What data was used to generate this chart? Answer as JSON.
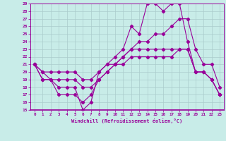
{
  "title": "",
  "xlabel": "Windchill (Refroidissement éolien,°C)",
  "bg_color": "#c8ece8",
  "grid_color": "#aacccc",
  "line_color": "#990099",
  "xlim": [
    -0.5,
    23.5
  ],
  "ylim": [
    15,
    29
  ],
  "xticks": [
    0,
    1,
    2,
    3,
    4,
    5,
    6,
    7,
    8,
    9,
    10,
    11,
    12,
    13,
    14,
    15,
    16,
    17,
    18,
    19,
    20,
    21,
    22,
    23
  ],
  "yticks": [
    15,
    16,
    17,
    18,
    19,
    20,
    21,
    22,
    23,
    24,
    25,
    26,
    27,
    28,
    29
  ],
  "line1_x": [
    0,
    1,
    2,
    3,
    4,
    5,
    6,
    7,
    8,
    9,
    10,
    11,
    12,
    13,
    14,
    15,
    16,
    17,
    18,
    19,
    20,
    21,
    22,
    23
  ],
  "line1_y": [
    21,
    19,
    19,
    18,
    18,
    18,
    15,
    16,
    20,
    21,
    22,
    23,
    26,
    25,
    29,
    29,
    28,
    29,
    29,
    24,
    20,
    20,
    19,
    17
  ],
  "line2_x": [
    0,
    1,
    2,
    3,
    4,
    5,
    6,
    7,
    8,
    9,
    10,
    11,
    12,
    13,
    14,
    15,
    16,
    17,
    18,
    19,
    20,
    21,
    22,
    23
  ],
  "line2_y": [
    21,
    19,
    19,
    17,
    17,
    17,
    16,
    17,
    19,
    20,
    21,
    22,
    23,
    23,
    23,
    23,
    23,
    23,
    23,
    23,
    20,
    20,
    19,
    17
  ],
  "line3_x": [
    0,
    1,
    2,
    3,
    4,
    5,
    6,
    7,
    8,
    9,
    10,
    11,
    12,
    13,
    14,
    15,
    16,
    17,
    18,
    19,
    20,
    21,
    22,
    23
  ],
  "line3_y": [
    21,
    20,
    19,
    19,
    19,
    19,
    18,
    18,
    19,
    20,
    21,
    21,
    22,
    22,
    22,
    22,
    22,
    22,
    23,
    23,
    20,
    20,
    19,
    17
  ],
  "line4_x": [
    0,
    1,
    2,
    3,
    4,
    5,
    6,
    7,
    8,
    9,
    10,
    11,
    12,
    13,
    14,
    15,
    16,
    17,
    18,
    19,
    20,
    21,
    22,
    23
  ],
  "line4_y": [
    21,
    20,
    20,
    20,
    20,
    20,
    19,
    19,
    20,
    21,
    21,
    22,
    23,
    24,
    24,
    25,
    25,
    26,
    27,
    27,
    23,
    21,
    21,
    18
  ]
}
